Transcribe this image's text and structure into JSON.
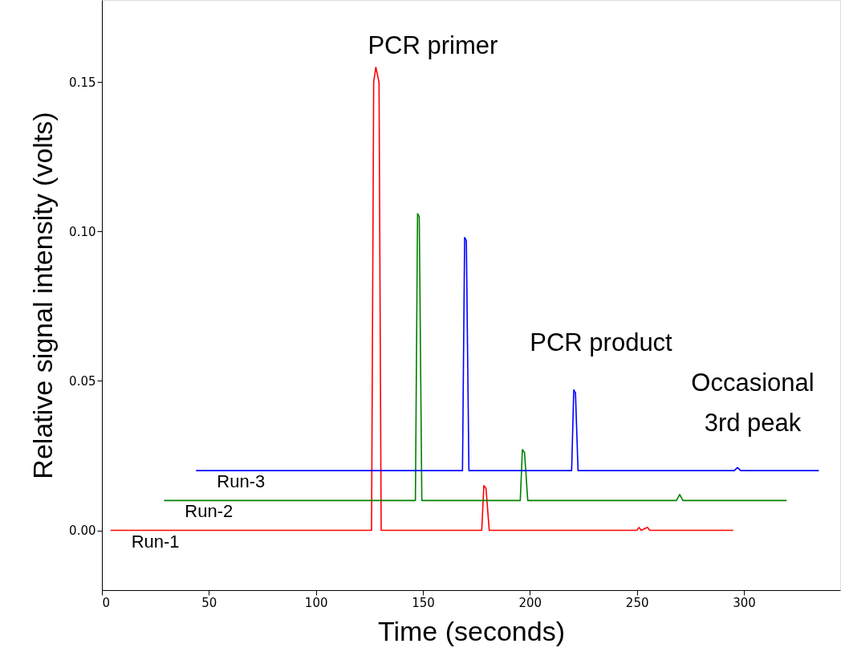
{
  "chart_data": {
    "type": "line",
    "xlabel": "Time (seconds)",
    "ylabel": "Relative signal intensity (volts)",
    "xlim": [
      0,
      345
    ],
    "xticks": [
      0,
      50,
      100,
      150,
      200,
      250,
      300
    ],
    "ylim": [
      -0.02,
      0.1775
    ],
    "yticks": [
      {
        "value": 0,
        "label": "0.00"
      },
      {
        "value": 0.05,
        "label": "0.05"
      },
      {
        "value": 0.1,
        "label": "0.10"
      },
      {
        "value": 0.15,
        "label": "0.15"
      }
    ],
    "grid": false,
    "line_style": "solid",
    "marker": "none",
    "series": [
      {
        "name": "Run-1",
        "color": "#ff0000",
        "x": [
          4,
          126,
          127,
          128,
          129.5,
          130.5,
          177.5,
          178.5,
          179.5,
          181,
          250,
          251,
          252,
          255,
          256,
          295
        ],
        "values": [
          0,
          0,
          0.15,
          0.155,
          0.15,
          0,
          0,
          0.015,
          0.014,
          0,
          0,
          0.001,
          0,
          0.001,
          0,
          0
        ]
      },
      {
        "name": "Run-2",
        "color": "#008000",
        "x": [
          29,
          146.5,
          147.5,
          148.3,
          149.5,
          195.5,
          196.5,
          197.5,
          199,
          268.5,
          270,
          271.5,
          320
        ],
        "values": [
          0.01,
          0.01,
          0.106,
          0.105,
          0.01,
          0.01,
          0.027,
          0.026,
          0.01,
          0.01,
          0.012,
          0.01,
          0.01
        ]
      },
      {
        "name": "Run-3",
        "color": "#0000ff",
        "x": [
          44,
          168.5,
          169.5,
          170.3,
          171.5,
          219.5,
          220.5,
          221.3,
          222.5,
          295.5,
          297,
          298.5,
          335
        ],
        "values": [
          0.02,
          0.02,
          0.098,
          0.097,
          0.02,
          0.02,
          0.047,
          0.046,
          0.02,
          0.02,
          0.021,
          0.02,
          0.02
        ]
      }
    ],
    "annotations": [
      {
        "text": "PCR primer",
        "x": 128,
        "y": 0.155
      },
      {
        "text": "PCR product",
        "x": 220.5,
        "y": 0.047
      },
      {
        "text": "Occasional\n3rd peak",
        "x": 297,
        "y": 0.021
      }
    ]
  }
}
